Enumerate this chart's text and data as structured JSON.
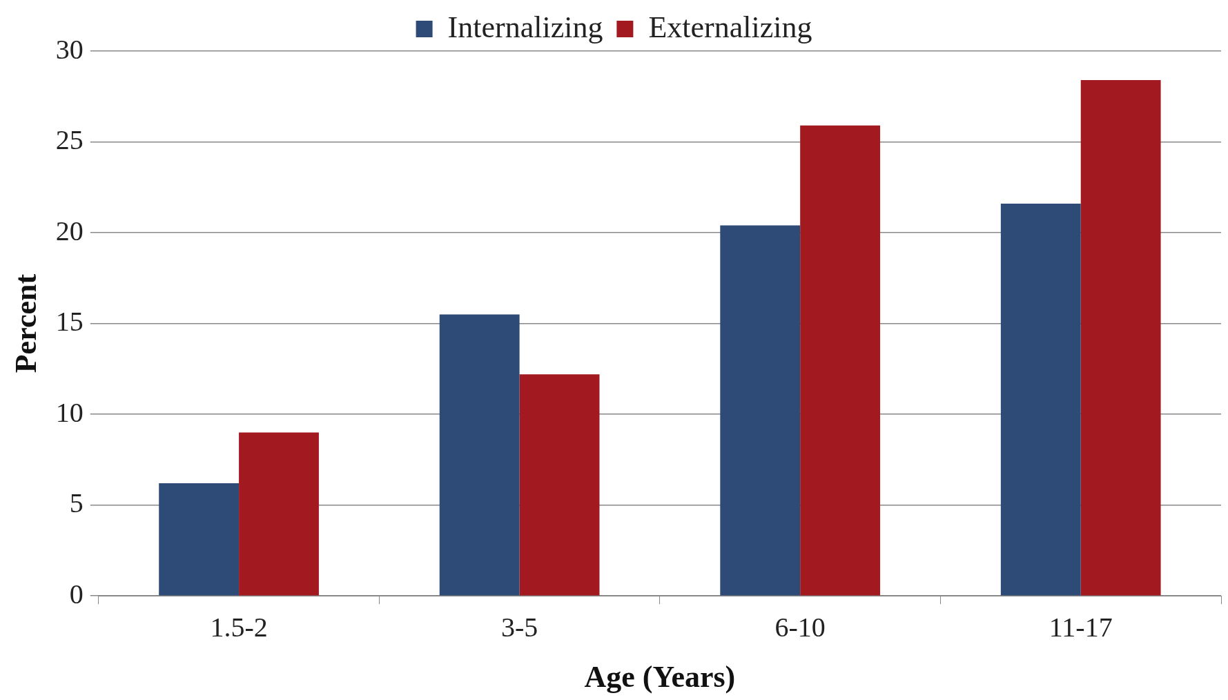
{
  "chart_data": {
    "type": "bar",
    "xlabel": "Age (Years)",
    "ylabel": "Percent",
    "categories": [
      "1.5-2",
      "3-5",
      "6-10",
      "11-17"
    ],
    "series": [
      {
        "name": "Internalizing",
        "color": "#2e4b77",
        "values": [
          6.2,
          15.5,
          20.4,
          21.6
        ]
      },
      {
        "name": "Externalizing",
        "color": "#a31920",
        "values": [
          9.0,
          12.2,
          25.9,
          28.4
        ]
      }
    ],
    "ylim": [
      0,
      30
    ],
    "yticks": [
      0,
      5,
      10,
      15,
      20,
      25,
      30
    ],
    "grid": "y",
    "legend": "top"
  }
}
